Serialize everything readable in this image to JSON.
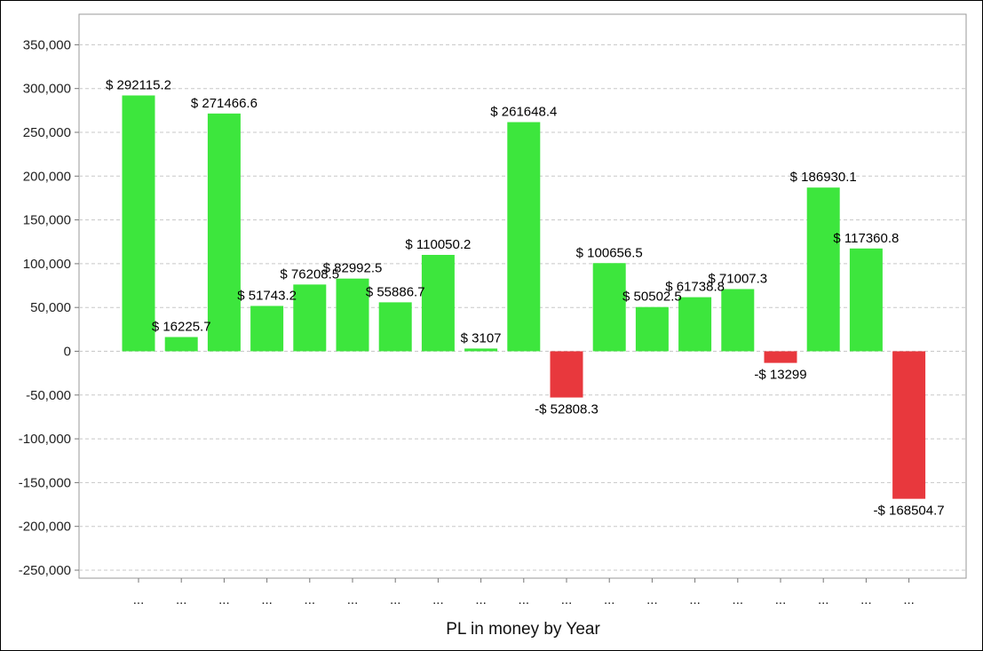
{
  "chart_data": {
    "type": "bar",
    "xlabel": "PL in money by Year",
    "ylim": [
      -260000,
      355000
    ],
    "yticks": [
      350000,
      300000,
      250000,
      200000,
      150000,
      100000,
      50000,
      0,
      -50000,
      -100000,
      -150000,
      -200000,
      -250000
    ],
    "ytick_labels": [
      "350,000",
      "300,000",
      "250,000",
      "200,000",
      "150,000",
      "100,000",
      "50,000",
      "0",
      "-50,000",
      "-100,000",
      "-150,000",
      "-200,000",
      "-250,000"
    ],
    "grid": true,
    "categories": [
      "...",
      "...",
      "...",
      "...",
      "...",
      "...",
      "...",
      "...",
      "...",
      "...",
      "...",
      "...",
      "...",
      "...",
      "...",
      "...",
      "...",
      "...",
      "..."
    ],
    "values": [
      292115.2,
      16225.7,
      271466.6,
      51743.2,
      76208.5,
      82992.5,
      55886.7,
      110050.2,
      3107,
      261648.4,
      -52808.3,
      100656.5,
      50502.5,
      61738.8,
      71007.3,
      -13299,
      186930.1,
      117360.8,
      -168504.7
    ],
    "data_labels": [
      "$ 292115.2",
      "$ 16225.7",
      "$ 271466.6",
      "$ 51743.2",
      "$ 76208.5",
      "$ 82992.5",
      "$ 55886.7",
      "$ 110050.2",
      "$ 3107",
      "$ 261648.4",
      "-$ 52808.3",
      "$ 100656.5",
      "$ 50502.5",
      "$ 61738.8",
      "$ 71007.3",
      "-$ 13299",
      "$ 186930.1",
      "$ 117360.8",
      "-$ 168504.7"
    ],
    "colors": {
      "positive": "#3de63d",
      "negative": "#e8383d"
    }
  }
}
